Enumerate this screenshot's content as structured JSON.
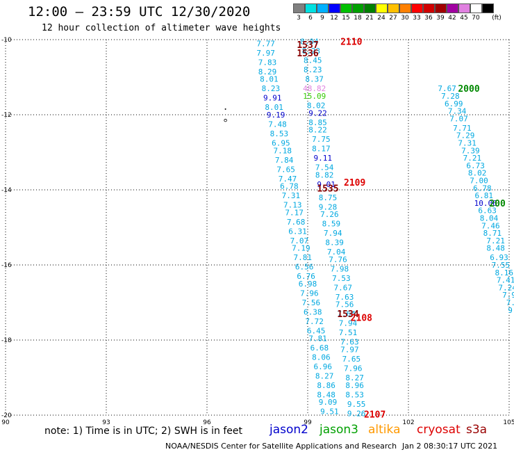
{
  "header": {
    "title": "12:00 – 23:59 UTC 12/30/2020",
    "subtitle": "12 hour collection of altimeter wave heights"
  },
  "legend": {
    "unit": "(ft)",
    "bins": [
      {
        "label": "3",
        "color": "#808080"
      },
      {
        "label": "6",
        "color": "#00e0e0"
      },
      {
        "label": "9",
        "color": "#00b0ff"
      },
      {
        "label": "12",
        "color": "#0000ff"
      },
      {
        "label": "15",
        "color": "#00c000"
      },
      {
        "label": "18",
        "color": "#00a000"
      },
      {
        "label": "21",
        "color": "#008000"
      },
      {
        "label": "24",
        "color": "#ffff00"
      },
      {
        "label": "27",
        "color": "#ffc000"
      },
      {
        "label": "30",
        "color": "#ff8000"
      },
      {
        "label": "33",
        "color": "#ff0000"
      },
      {
        "label": "36",
        "color": "#d00000"
      },
      {
        "label": "39",
        "color": "#a00000"
      },
      {
        "label": "42",
        "color": "#a000a0"
      },
      {
        "label": "45",
        "color": "#e080e0"
      },
      {
        "label": "70",
        "color": "#ffffff"
      },
      {
        "label": "",
        "color": "#000000"
      }
    ]
  },
  "footer": {
    "note": "note:  1) Time is in UTC;  2) SWH is in feet",
    "satellites": [
      {
        "name": "jason2",
        "color": "#0000cc"
      },
      {
        "name": "jason3",
        "color": "#00a000"
      },
      {
        "name": "altika",
        "color": "#ff9900"
      },
      {
        "name": "cryosat",
        "color": "#dd0000"
      },
      {
        "name": "s3a",
        "color": "#990000"
      }
    ],
    "credit": "NOAA/NESDIS Center for Satellite Applications and Research",
    "generated": "Jan  2 08:30:17 UTC 2021"
  },
  "chart_data": {
    "type": "scatter",
    "xlim": [
      90,
      105
    ],
    "ylim": [
      -20,
      -10
    ],
    "x_ticks": [
      "90",
      "93",
      "96",
      "99",
      "102",
      "105"
    ],
    "y_ticks": [
      "-10",
      "-12",
      "-14",
      "-16",
      "-18",
      "-20"
    ],
    "grid": true,
    "colors": {
      "cyan": "#00a8e0",
      "green": "#008800",
      "blue": "#0000cc",
      "red": "#dd0000",
      "darkred": "#880000",
      "pink": "#e080e0",
      "lime": "#33cc00"
    },
    "time_labels": [
      {
        "text": "2110",
        "lon": 100.3,
        "lat": -10.05,
        "color": "red"
      },
      {
        "text": "1537",
        "lon": 99.0,
        "lat": -10.13,
        "color": "darkred"
      },
      {
        "text": "1536",
        "lon": 99.0,
        "lat": -10.35,
        "color": "darkred"
      },
      {
        "text": "2109",
        "lon": 100.4,
        "lat": -13.8,
        "color": "red"
      },
      {
        "text": "1535",
        "lon": 99.6,
        "lat": -13.95,
        "color": "darkred"
      },
      {
        "text": "1534",
        "lon": 100.2,
        "lat": -17.3,
        "color": "darkred"
      },
      {
        "text": "2108",
        "lon": 100.6,
        "lat": -17.4,
        "color": "red"
      },
      {
        "text": "2107",
        "lon": 101.0,
        "lat": -19.97,
        "color": "red"
      },
      {
        "text": "2000",
        "lon": 103.8,
        "lat": -11.3,
        "color": "green"
      },
      {
        "text": "200",
        "lon": 104.65,
        "lat": -14.35,
        "color": "green"
      }
    ],
    "series": [
      {
        "name": "track1",
        "color": "cyan",
        "values": [
          [
            97.75,
            -10.1,
            "7.77"
          ],
          [
            97.75,
            -10.35,
            "7.97"
          ],
          [
            97.8,
            -10.6,
            "7.83"
          ],
          [
            97.8,
            -10.85,
            "8.29"
          ],
          [
            97.85,
            -11.05,
            "8.01"
          ],
          [
            97.9,
            -11.3,
            "8.23"
          ],
          [
            97.95,
            -11.55,
            "9.91",
            "blue"
          ],
          [
            98.0,
            -11.8,
            "8.01"
          ],
          [
            98.05,
            -12.0,
            "9.19",
            "blue"
          ],
          [
            98.1,
            -12.25,
            "7.48"
          ],
          [
            98.15,
            -12.5,
            "8.53"
          ],
          [
            98.2,
            -12.75,
            "6.95"
          ],
          [
            98.25,
            -12.95,
            "7.18"
          ],
          [
            98.3,
            -13.2,
            "7.84"
          ],
          [
            98.35,
            -13.45,
            "7.65"
          ],
          [
            98.4,
            -13.7,
            "7.47"
          ],
          [
            98.45,
            -13.9,
            "6.78"
          ],
          [
            98.5,
            -14.15,
            "7.31"
          ],
          [
            98.55,
            -14.4,
            "7.13"
          ],
          [
            98.6,
            -14.6,
            "7.17"
          ],
          [
            98.65,
            -14.85,
            "7.68"
          ],
          [
            98.7,
            -15.1,
            "6.31"
          ],
          [
            98.75,
            -15.35,
            "7.07"
          ],
          [
            98.8,
            -15.55,
            "7.19"
          ],
          [
            98.85,
            -15.8,
            "7.81"
          ],
          [
            98.9,
            -16.05,
            "6.56"
          ],
          [
            98.95,
            -16.3,
            "6.76"
          ],
          [
            99.0,
            -16.5,
            "6.98"
          ],
          [
            99.05,
            -16.75,
            "7.96"
          ],
          [
            99.1,
            -17.0,
            "7.56"
          ],
          [
            99.15,
            -17.25,
            "6.38"
          ],
          [
            99.2,
            -17.5,
            "7.72"
          ],
          [
            99.25,
            -17.75,
            "6.45"
          ],
          [
            99.3,
            -17.95,
            "7.81"
          ],
          [
            99.35,
            -18.2,
            "6.68"
          ],
          [
            99.4,
            -18.45,
            "8.06"
          ],
          [
            99.45,
            -18.7,
            "6.96"
          ],
          [
            99.5,
            -18.95,
            "8.27"
          ],
          [
            99.55,
            -19.2,
            "8.86"
          ],
          [
            99.55,
            -19.45,
            "8.48"
          ],
          [
            99.6,
            -19.65,
            "9.09"
          ],
          [
            99.65,
            -19.9,
            "9.51"
          ]
        ]
      },
      {
        "name": "track2",
        "color": "cyan",
        "values": [
          [
            99.05,
            -10.05,
            "8.04"
          ],
          [
            99.1,
            -10.3,
            "8.23"
          ],
          [
            99.15,
            -10.55,
            "8.45"
          ],
          [
            99.15,
            -10.8,
            "8.23"
          ],
          [
            99.2,
            -11.05,
            "8.37"
          ],
          [
            99.2,
            -11.3,
            "48.82",
            "pink"
          ],
          [
            99.2,
            -11.5,
            "15.09",
            "lime"
          ],
          [
            99.25,
            -11.75,
            "8.02"
          ],
          [
            99.3,
            -11.95,
            "9.22",
            "blue"
          ],
          [
            99.3,
            -12.2,
            "8.85"
          ],
          [
            99.3,
            -12.4,
            "8.22"
          ],
          [
            99.4,
            -12.65,
            "7.75"
          ],
          [
            99.4,
            -12.9,
            "8.17"
          ],
          [
            99.45,
            -13.15,
            "9.11",
            "blue"
          ],
          [
            99.5,
            -13.4,
            "7.54"
          ],
          [
            99.5,
            -13.6,
            "8.82"
          ],
          [
            99.55,
            -13.85,
            "9.01",
            "blue"
          ],
          [
            99.6,
            -14.2,
            "8.75"
          ],
          [
            99.6,
            -14.45,
            "9.28"
          ],
          [
            99.65,
            -14.65,
            "7.26"
          ],
          [
            99.7,
            -14.9,
            "8.59"
          ],
          [
            99.75,
            -15.15,
            "7.94"
          ],
          [
            99.8,
            -15.4,
            "8.39"
          ],
          [
            99.85,
            -15.65,
            "7.04"
          ],
          [
            99.9,
            -15.85,
            "7.76"
          ],
          [
            99.95,
            -16.1,
            "7.98"
          ],
          [
            100.0,
            -16.35,
            "7.53"
          ],
          [
            100.05,
            -16.6,
            "7.67"
          ],
          [
            100.1,
            -16.85,
            "7.63"
          ],
          [
            100.1,
            -17.05,
            "7.56"
          ],
          [
            100.15,
            -17.3,
            "7.64"
          ],
          [
            100.2,
            -17.55,
            "7.94"
          ],
          [
            100.2,
            -17.8,
            "7.51"
          ],
          [
            100.25,
            -18.05,
            "7.63"
          ],
          [
            100.25,
            -18.25,
            "7.97"
          ],
          [
            100.3,
            -18.5,
            "7.65"
          ],
          [
            100.35,
            -18.75,
            "7.96"
          ],
          [
            100.4,
            -19.0,
            "8.27"
          ],
          [
            100.4,
            -19.2,
            "8.96"
          ],
          [
            100.4,
            -19.45,
            "8.53"
          ],
          [
            100.45,
            -19.7,
            "9.55"
          ],
          [
            100.45,
            -19.95,
            "9.26"
          ]
        ]
      },
      {
        "name": "track3",
        "color": "cyan",
        "values": [
          [
            103.15,
            -11.3,
            "7.67"
          ],
          [
            103.25,
            -11.5,
            "7.28"
          ],
          [
            103.35,
            -11.7,
            "6.99"
          ],
          [
            103.45,
            -11.9,
            "7.34"
          ],
          [
            103.5,
            -12.1,
            "7.07"
          ],
          [
            103.6,
            -12.35,
            "7.71"
          ],
          [
            103.7,
            -12.55,
            "7.29"
          ],
          [
            103.75,
            -12.75,
            "7.31"
          ],
          [
            103.85,
            -12.95,
            "7.39"
          ],
          [
            103.9,
            -13.15,
            "7.21"
          ],
          [
            104.0,
            -13.35,
            "6.73"
          ],
          [
            104.05,
            -13.55,
            "8.02"
          ],
          [
            104.1,
            -13.75,
            "7.00"
          ],
          [
            104.2,
            -13.95,
            "6.78"
          ],
          [
            104.25,
            -14.15,
            "6.81"
          ],
          [
            104.3,
            -14.35,
            "10.06",
            "blue"
          ],
          [
            104.35,
            -14.55,
            "6.63"
          ],
          [
            104.4,
            -14.75,
            "8.04"
          ],
          [
            104.45,
            -14.95,
            "7.46"
          ],
          [
            104.5,
            -15.15,
            "8.71"
          ],
          [
            104.6,
            -15.35,
            "7.21"
          ],
          [
            104.6,
            -15.55,
            "8.48"
          ],
          [
            104.7,
            -15.8,
            "6.93"
          ],
          [
            104.75,
            -16.0,
            "7.55"
          ],
          [
            104.85,
            -16.2,
            "8.16"
          ],
          [
            104.9,
            -16.4,
            "7.41"
          ],
          [
            104.95,
            -16.6,
            "7.24"
          ],
          [
            105.0,
            -16.8,
            "7.9"
          ],
          [
            105.05,
            -17.0,
            "7."
          ],
          [
            105.1,
            -17.2,
            "9."
          ]
        ]
      }
    ]
  }
}
